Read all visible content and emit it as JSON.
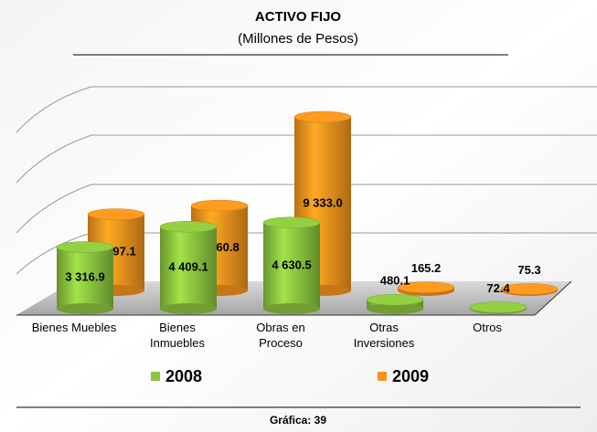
{
  "chart_data": {
    "type": "bar3d",
    "title": "ACTIVO FIJO",
    "subtitle": "(Millones de Pesos)",
    "categories": [
      "Bienes Muebles",
      "Bienes Inmuebles",
      "Obras en Proceso",
      "Otras Inversiones",
      "Otros"
    ],
    "series": [
      {
        "name": "2008",
        "color": "#8cc63f",
        "values": [
          3316.9,
          4409.1,
          4630.5,
          480.1,
          72.4
        ],
        "value_labels": [
          "3 316.9",
          "4 409.1",
          "4 630.5",
          "480.1",
          "72.4"
        ]
      },
      {
        "name": "2009",
        "color": "#f7941d",
        "values": [
          4097.1,
          4560.8,
          9333.0,
          165.2,
          75.3
        ],
        "value_labels": [
          "4 097.1",
          "4 560.8",
          "9 333.0",
          "165.2",
          "75.3"
        ]
      }
    ],
    "caption": "Gráfica: 39"
  }
}
